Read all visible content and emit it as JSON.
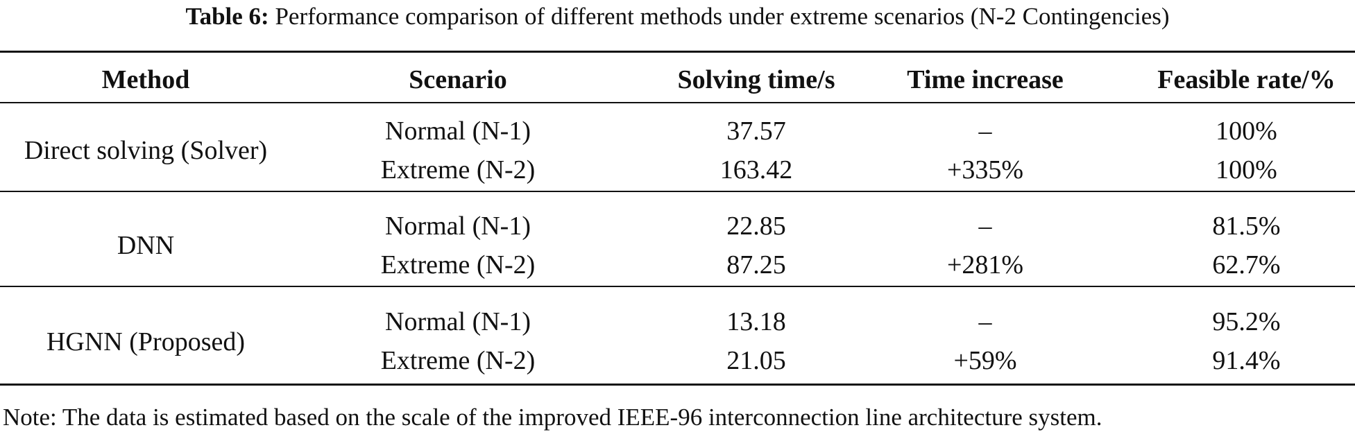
{
  "caption": {
    "label": "Table 6:",
    "text": "Performance comparison of different methods under extreme scenarios (N-2 Contingencies)"
  },
  "table": {
    "headers": [
      "Method",
      "Scenario",
      "Solving time/s",
      "Time increase",
      "Feasible rate/%"
    ],
    "groups": [
      {
        "method": "Direct solving (Solver)",
        "rows": [
          {
            "scenario": "Normal (N-1)",
            "time": "37.57",
            "increase": "–",
            "feasible": "100%"
          },
          {
            "scenario": "Extreme (N-2)",
            "time": "163.42",
            "increase": "+335%",
            "feasible": "100%"
          }
        ]
      },
      {
        "method": "DNN",
        "rows": [
          {
            "scenario": "Normal (N-1)",
            "time": "22.85",
            "increase": "–",
            "feasible": "81.5%"
          },
          {
            "scenario": "Extreme (N-2)",
            "time": "87.25",
            "increase": "+281%",
            "feasible": "62.7%"
          }
        ]
      },
      {
        "method": "HGNN (Proposed)",
        "rows": [
          {
            "scenario": "Normal (N-1)",
            "time": "13.18",
            "increase": "–",
            "feasible": "95.2%"
          },
          {
            "scenario": "Extreme (N-2)",
            "time": "21.05",
            "increase": "+59%",
            "feasible": "91.4%"
          }
        ]
      }
    ]
  },
  "note": "Note: The data is estimated based on the scale of the improved IEEE-96 interconnection line architecture system."
}
